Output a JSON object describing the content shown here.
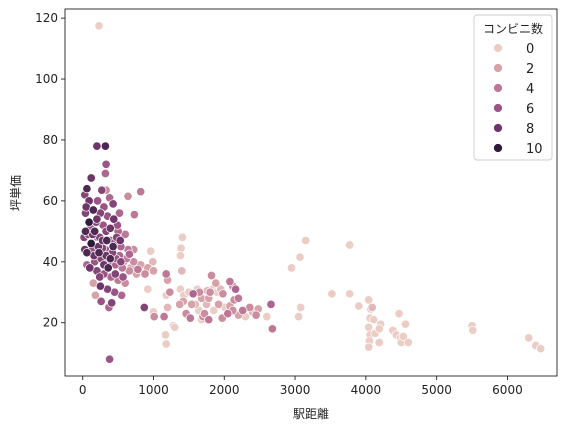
{
  "chart_data": {
    "type": "scatter",
    "xlabel": "駅距離",
    "ylabel": "坪単価",
    "xlim": [
      -250,
      6700
    ],
    "ylim": [
      2.5,
      123
    ],
    "xticks": [
      0,
      1000,
      2000,
      3000,
      4000,
      5000,
      6000
    ],
    "yticks": [
      20,
      40,
      60,
      80,
      100,
      120
    ],
    "grid": false,
    "legend": {
      "title": "コンビニ数",
      "placement": "top-right",
      "entries": [
        {
          "label": "0",
          "color": "#ebcdc5"
        },
        {
          "label": "2",
          "color": "#d6a1a8"
        },
        {
          "label": "4",
          "color": "#bd7897"
        },
        {
          "label": "6",
          "color": "#9a5486"
        },
        {
          "label": "8",
          "color": "#6d3568"
        },
        {
          "label": "10",
          "color": "#2d1a3c"
        }
      ]
    },
    "points": [
      [
        230,
        117.5,
        0
      ],
      [
        200,
        78,
        8
      ],
      [
        320,
        78,
        9
      ],
      [
        120,
        67.5,
        8
      ],
      [
        330,
        72,
        6
      ],
      [
        320,
        69,
        5
      ],
      [
        270,
        63.5,
        7
      ],
      [
        330,
        63.5,
        3
      ],
      [
        60,
        64,
        9
      ],
      [
        640,
        61.5,
        3
      ],
      [
        820,
        63,
        4
      ],
      [
        380,
        61,
        5
      ],
      [
        30,
        62,
        7
      ],
      [
        90,
        60,
        8
      ],
      [
        210,
        60,
        6
      ],
      [
        430,
        59,
        7
      ],
      [
        520,
        56,
        5
      ],
      [
        730,
        55.5,
        4
      ],
      [
        50,
        58,
        8
      ],
      [
        150,
        57,
        9
      ],
      [
        250,
        56,
        7
      ],
      [
        350,
        55,
        6
      ],
      [
        440,
        54,
        8
      ],
      [
        90,
        53,
        10
      ],
      [
        190,
        53,
        7
      ],
      [
        290,
        52,
        6
      ],
      [
        390,
        51,
        8
      ],
      [
        500,
        50,
        5
      ],
      [
        600,
        49,
        4
      ],
      [
        40,
        50,
        9
      ],
      [
        140,
        49,
        8
      ],
      [
        240,
        48,
        7
      ],
      [
        340,
        47,
        9
      ],
      [
        440,
        46,
        6
      ],
      [
        540,
        45,
        5
      ],
      [
        640,
        44,
        4
      ],
      [
        20,
        48,
        7
      ],
      [
        120,
        46,
        10
      ],
      [
        220,
        45,
        8
      ],
      [
        320,
        44,
        6
      ],
      [
        420,
        43,
        7
      ],
      [
        520,
        42,
        5
      ],
      [
        620,
        41,
        4
      ],
      [
        720,
        40,
        3
      ],
      [
        820,
        39,
        2
      ],
      [
        920,
        38,
        2
      ],
      [
        60,
        43,
        9
      ],
      [
        160,
        42,
        8
      ],
      [
        260,
        41,
        7
      ],
      [
        360,
        40,
        6
      ],
      [
        460,
        39,
        5
      ],
      [
        560,
        38,
        4
      ],
      [
        660,
        37,
        3
      ],
      [
        760,
        36,
        2
      ],
      [
        100,
        38,
        8
      ],
      [
        200,
        37,
        7
      ],
      [
        300,
        36,
        6
      ],
      [
        400,
        35,
        5
      ],
      [
        500,
        34,
        4
      ],
      [
        600,
        33,
        3
      ],
      [
        150,
        33,
        2
      ],
      [
        250,
        32,
        8
      ],
      [
        350,
        31,
        7
      ],
      [
        450,
        30,
        6
      ],
      [
        550,
        29,
        5
      ],
      [
        180,
        29,
        2
      ],
      [
        260,
        27,
        6
      ],
      [
        410,
        26.5,
        7
      ],
      [
        370,
        25,
        5
      ],
      [
        380,
        8,
        6
      ],
      [
        580,
        40,
        3
      ],
      [
        680,
        38,
        2
      ],
      [
        780,
        37.5,
        4
      ],
      [
        880,
        36,
        3
      ],
      [
        960,
        43.5,
        0
      ],
      [
        990,
        40,
        1
      ],
      [
        1000,
        37,
        2
      ],
      [
        920,
        31,
        0
      ],
      [
        870,
        25,
        7
      ],
      [
        1000,
        23.5,
        0
      ],
      [
        1010,
        22,
        3
      ],
      [
        1180,
        36,
        4
      ],
      [
        1200,
        34,
        2
      ],
      [
        1230,
        30,
        3
      ],
      [
        1180,
        29,
        0
      ],
      [
        1200,
        25,
        1
      ],
      [
        1170,
        16,
        0
      ],
      [
        1180,
        13,
        0
      ],
      [
        1150,
        22,
        4
      ],
      [
        1280,
        19,
        0
      ],
      [
        1300,
        18.5,
        0
      ],
      [
        1410,
        48,
        0
      ],
      [
        1390,
        44.5,
        0
      ],
      [
        1380,
        42,
        0
      ],
      [
        1400,
        37,
        1
      ],
      [
        1380,
        31,
        0
      ],
      [
        1430,
        29,
        0
      ],
      [
        1420,
        27,
        2
      ],
      [
        1370,
        26,
        2
      ],
      [
        1500,
        30,
        0
      ],
      [
        1560,
        29.5,
        5
      ],
      [
        1540,
        26,
        2
      ],
      [
        1460,
        23,
        3
      ],
      [
        1520,
        21.5,
        4
      ],
      [
        1620,
        31,
        0
      ],
      [
        1650,
        30,
        3
      ],
      [
        1680,
        28,
        2
      ],
      [
        1590,
        26,
        1
      ],
      [
        1640,
        24,
        0
      ],
      [
        1700,
        22,
        3
      ],
      [
        1680,
        21,
        0
      ],
      [
        1760,
        30.5,
        1
      ],
      [
        1800,
        30,
        3
      ],
      [
        1830,
        31,
        0
      ],
      [
        1780,
        28,
        2
      ],
      [
        1750,
        26,
        1
      ],
      [
        1720,
        23,
        3
      ],
      [
        1780,
        21,
        4
      ],
      [
        1850,
        24,
        0
      ],
      [
        1820,
        35.5,
        3
      ],
      [
        1880,
        33,
        2
      ],
      [
        1950,
        31,
        1
      ],
      [
        1900,
        30,
        0
      ],
      [
        1980,
        29.5,
        3
      ],
      [
        1920,
        26,
        2
      ],
      [
        2010,
        25,
        0
      ],
      [
        2050,
        23,
        4
      ],
      [
        1970,
        21.5,
        3
      ],
      [
        2080,
        33.5,
        4
      ],
      [
        2120,
        32,
        3
      ],
      [
        2160,
        31,
        5
      ],
      [
        2200,
        28,
        4
      ],
      [
        2140,
        27.5,
        3
      ],
      [
        2080,
        25.5,
        2
      ],
      [
        2120,
        24,
        3
      ],
      [
        2200,
        22.5,
        2
      ],
      [
        2260,
        24,
        4
      ],
      [
        2300,
        22,
        0
      ],
      [
        2360,
        25,
        3
      ],
      [
        2400,
        23.5,
        1
      ],
      [
        2450,
        22.5,
        3
      ],
      [
        2480,
        24.5,
        2
      ],
      [
        2600,
        22,
        0
      ],
      [
        2660,
        26,
        5
      ],
      [
        2680,
        18,
        4
      ],
      [
        2950,
        38,
        0
      ],
      [
        3070,
        41.5,
        0
      ],
      [
        3150,
        47,
        0
      ],
      [
        3080,
        25,
        0
      ],
      [
        3050,
        22,
        0
      ],
      [
        3520,
        29.5,
        0
      ],
      [
        3770,
        29.5,
        0
      ],
      [
        3770,
        45.5,
        0
      ],
      [
        3900,
        25.5,
        0
      ],
      [
        4040,
        27.5,
        0
      ],
      [
        4070,
        24.5,
        0
      ],
      [
        4060,
        21.5,
        0
      ],
      [
        4040,
        18.5,
        0
      ],
      [
        4060,
        16,
        0
      ],
      [
        4050,
        14,
        0
      ],
      [
        4040,
        12,
        0
      ],
      [
        4110,
        21,
        0
      ],
      [
        4130,
        16.5,
        0
      ],
      [
        4210,
        19.5,
        0
      ],
      [
        4190,
        18,
        0
      ],
      [
        4190,
        13.5,
        0
      ],
      [
        4380,
        17.5,
        0
      ],
      [
        4430,
        16,
        0
      ],
      [
        4470,
        23,
        0
      ],
      [
        4490,
        15,
        0
      ],
      [
        4500,
        13.5,
        0
      ],
      [
        4560,
        19.5,
        0
      ],
      [
        4530,
        15.5,
        0
      ],
      [
        4600,
        13.5,
        0
      ],
      [
        5500,
        19,
        0
      ],
      [
        5510,
        17.5,
        0
      ],
      [
        6300,
        15,
        0
      ],
      [
        6400,
        12.5,
        0
      ],
      [
        6470,
        11.5,
        0
      ],
      [
        4090,
        25,
        1
      ],
      [
        80,
        49,
        7
      ],
      [
        110,
        51,
        6
      ],
      [
        170,
        50,
        9
      ],
      [
        210,
        48,
        6
      ],
      [
        280,
        47,
        8
      ],
      [
        330,
        50,
        7
      ],
      [
        390,
        47,
        5
      ],
      [
        430,
        45,
        9
      ],
      [
        480,
        48,
        7
      ],
      [
        30,
        44,
        8
      ],
      [
        130,
        44,
        6
      ],
      [
        230,
        43,
        9
      ],
      [
        330,
        42,
        8
      ],
      [
        390,
        41,
        9
      ],
      [
        470,
        41,
        6
      ],
      [
        540,
        40,
        7
      ],
      [
        40,
        56,
        7
      ],
      [
        200,
        54,
        8
      ],
      [
        300,
        58,
        6
      ],
      [
        280,
        44.5,
        7
      ],
      [
        360,
        38,
        9
      ],
      [
        460,
        36,
        7
      ],
      [
        570,
        35,
        6
      ],
      [
        660,
        42.5,
        5
      ],
      [
        720,
        44,
        3
      ],
      [
        490,
        52,
        6
      ],
      [
        530,
        47,
        8
      ],
      [
        300,
        39,
        8
      ],
      [
        240,
        35,
        7
      ],
      [
        170,
        40,
        6
      ],
      [
        60,
        39,
        5
      ]
    ]
  }
}
